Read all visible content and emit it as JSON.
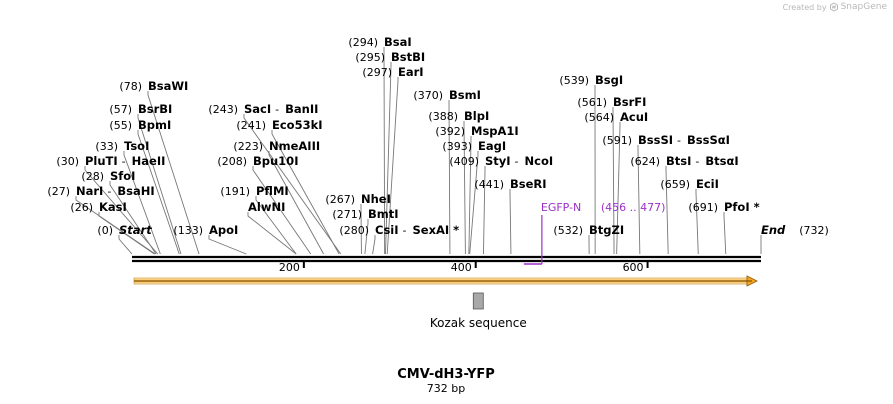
{
  "credit": {
    "created_by": "Created by",
    "brand": "SnapGene"
  },
  "plasmid": {
    "name": "CMV-dH3-YFP",
    "length_label": "732 bp",
    "length_bp": 732
  },
  "ticks": [
    {
      "bp": 200,
      "label": "200"
    },
    {
      "bp": 400,
      "label": "400"
    },
    {
      "bp": 600,
      "label": "600"
    }
  ],
  "sites": [
    {
      "pos": 0,
      "label": "(0)",
      "name": "Start",
      "italic": true
    },
    {
      "pos": 26,
      "label": "(26)",
      "name": "KasI"
    },
    {
      "pos": 27,
      "label": "(27)",
      "name": "NarI",
      "name2": "BsaHI"
    },
    {
      "pos": 28,
      "label": "(28)",
      "name": "SfoI"
    },
    {
      "pos": 30,
      "label": "(30)",
      "name": "PluTI",
      "name2": "HaeII"
    },
    {
      "pos": 33,
      "label": "(33)",
      "name": "TsoI"
    },
    {
      "pos": 55,
      "label": "(55)",
      "name": "BpmI"
    },
    {
      "pos": 57,
      "label": "(57)",
      "name": "BsrBI"
    },
    {
      "pos": 78,
      "label": "(78)",
      "name": "BsaWI"
    },
    {
      "pos": 133,
      "label": "(133)",
      "name": "ApoI"
    },
    {
      "pos": 191,
      "label": "(191)",
      "name": "PflMI"
    },
    {
      "pos": 191,
      "label": "",
      "name": "AlwNI"
    },
    {
      "pos": 208,
      "label": "(208)",
      "name": "Bpu10I"
    },
    {
      "pos": 223,
      "label": "(223)",
      "name": "NmeAIII"
    },
    {
      "pos": 241,
      "label": "(241)",
      "name": "Eco53kI"
    },
    {
      "pos": 243,
      "label": "(243)",
      "name": "SacI",
      "name2": "BanII"
    },
    {
      "pos": 267,
      "label": "(267)",
      "name": "NheI"
    },
    {
      "pos": 271,
      "label": "(271)",
      "name": "BmtI"
    },
    {
      "pos": 280,
      "label": "(280)",
      "name": "CsiI",
      "name2": "SexAI *"
    },
    {
      "pos": 294,
      "label": "(294)",
      "name": "BsaI"
    },
    {
      "pos": 295,
      "label": "(295)",
      "name": "BstBI"
    },
    {
      "pos": 297,
      "label": "(297)",
      "name": "EarI"
    },
    {
      "pos": 370,
      "label": "(370)",
      "name": "BsmI"
    },
    {
      "pos": 388,
      "label": "(388)",
      "name": "BlpI"
    },
    {
      "pos": 392,
      "label": "(392)",
      "name": "MspA1I"
    },
    {
      "pos": 393,
      "label": "(393)",
      "name": "EagI"
    },
    {
      "pos": 409,
      "label": "(409)",
      "name": "StyI",
      "name2": "NcoI"
    },
    {
      "pos": 441,
      "label": "(441)",
      "name": "BseRI"
    },
    {
      "pos": 532,
      "label": "(532)",
      "name": "BtgZI"
    },
    {
      "pos": 539,
      "label": "(539)",
      "name": "BsgI"
    },
    {
      "pos": 561,
      "label": "(561)",
      "name": "BsrFI"
    },
    {
      "pos": 564,
      "label": "(564)",
      "name": "AcuI"
    },
    {
      "pos": 591,
      "label": "(591)",
      "name": "BssSI",
      "name2": "BssSαI"
    },
    {
      "pos": 624,
      "label": "(624)",
      "name": "BtsI",
      "name2": "BtsαI"
    },
    {
      "pos": 659,
      "label": "(659)",
      "name": "EciI"
    },
    {
      "pos": 691,
      "label": "(691)",
      "name": "PfoI *"
    },
    {
      "pos": 732,
      "label": "(732)",
      "name": "End",
      "italic": true
    }
  ],
  "features": [
    {
      "name": "EGFP-N",
      "range_label": "(456 .. 477)",
      "start": 456,
      "end": 477,
      "color": "#9b30c9"
    },
    {
      "name": "Kozak sequence",
      "pos": 403,
      "color": "#a8a8a8"
    }
  ],
  "orf": {
    "start": 0,
    "end": 732,
    "direction": "forward",
    "color": "#f5a623"
  }
}
